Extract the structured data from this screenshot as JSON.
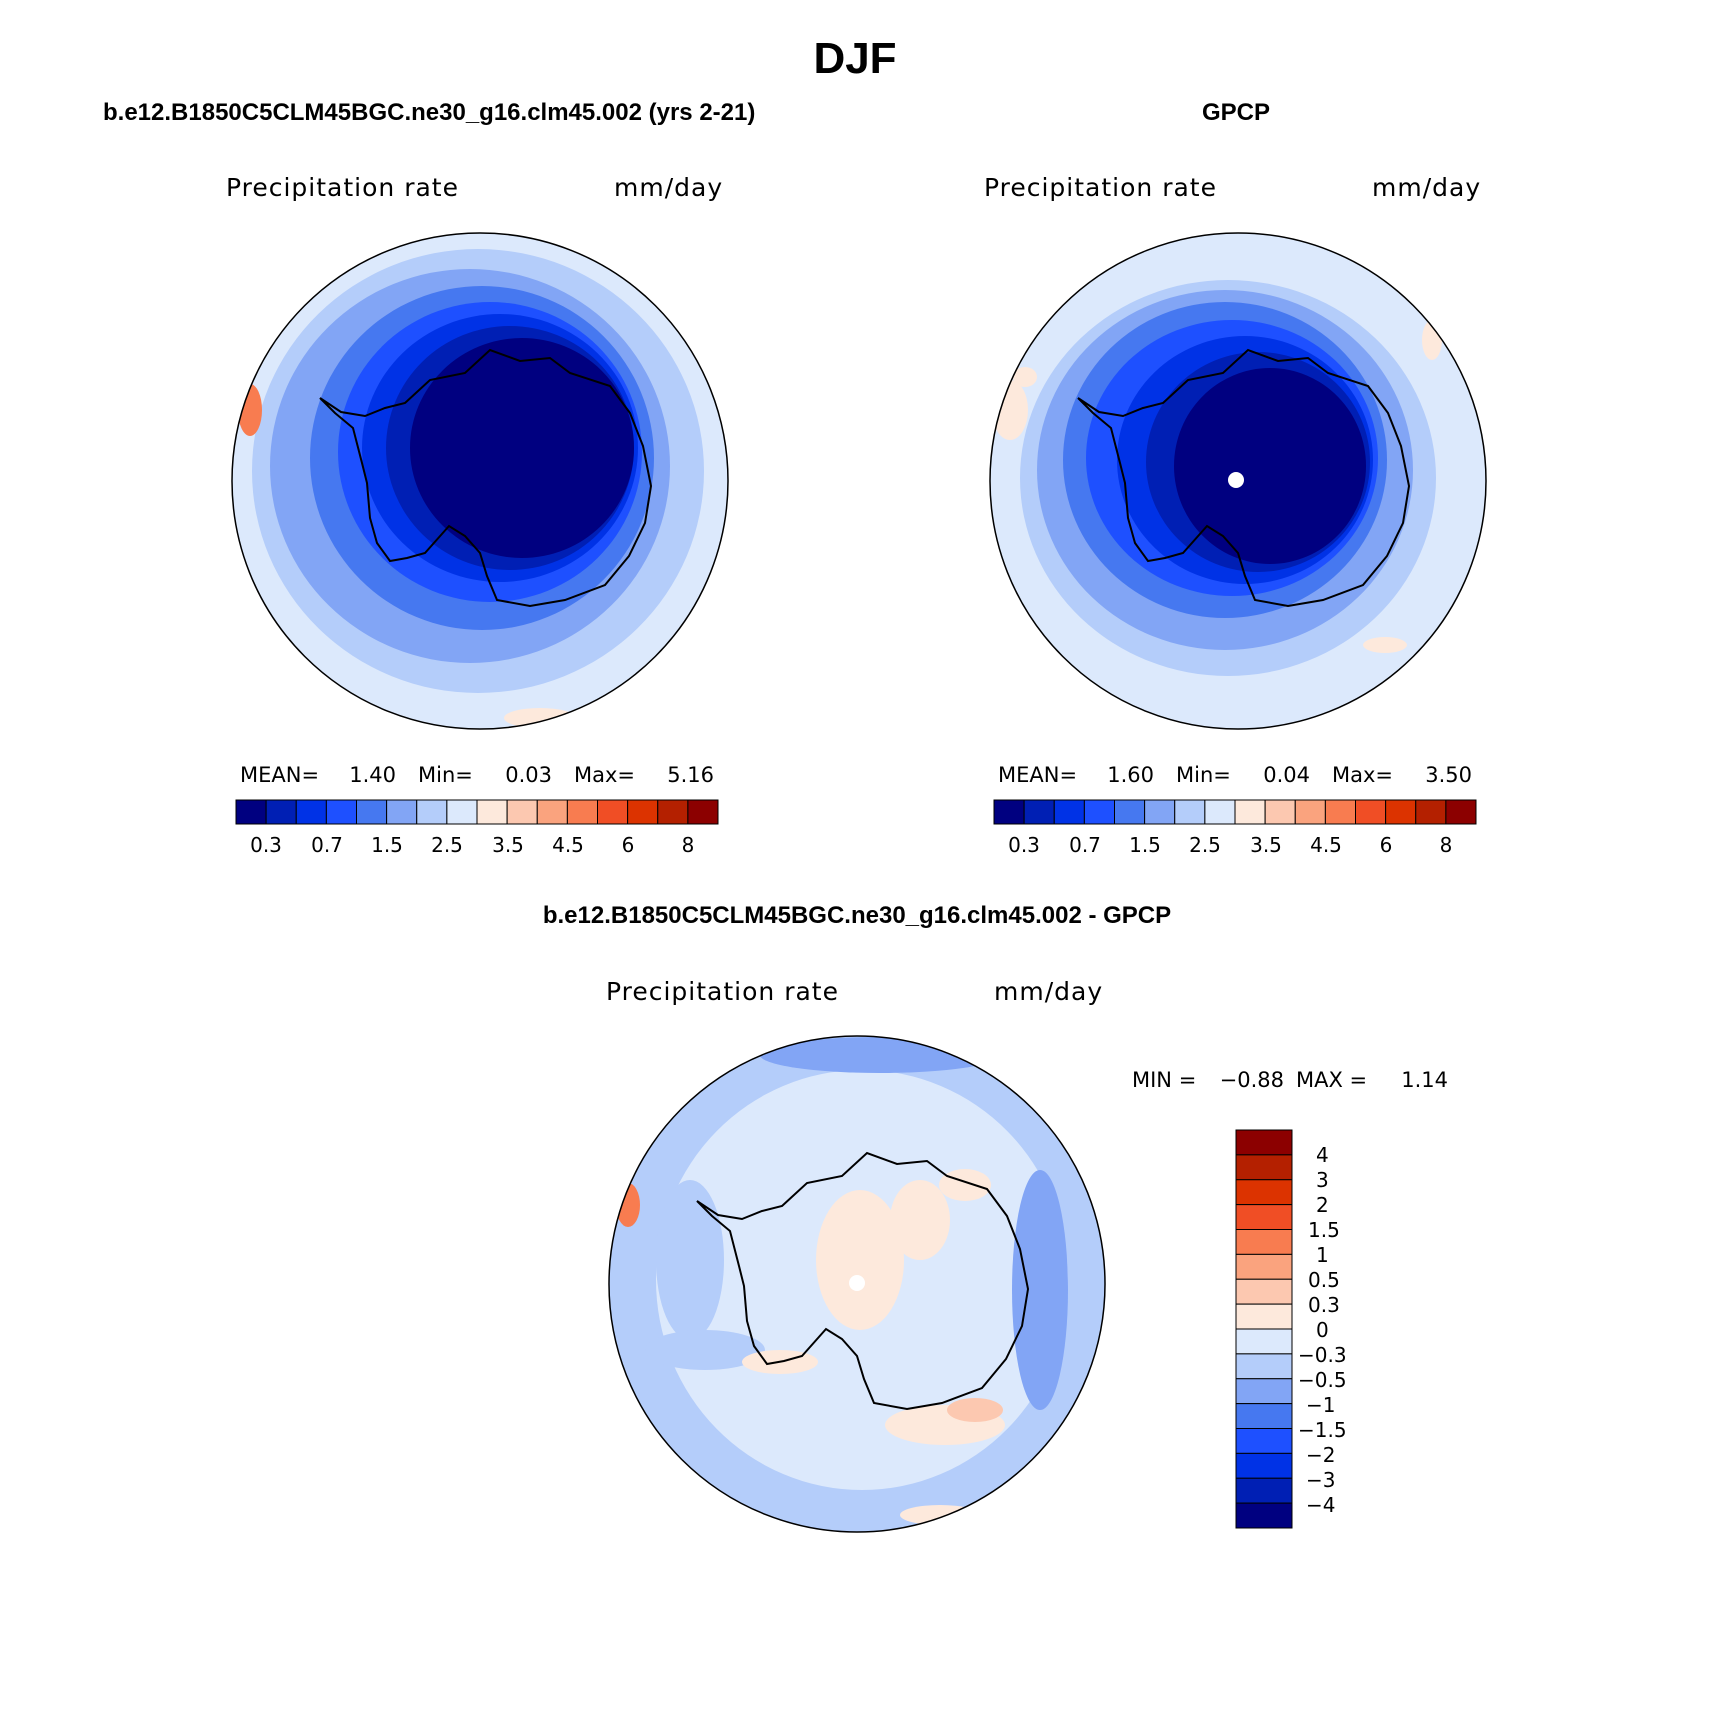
{
  "page": {
    "title": "DJF"
  },
  "panels": [
    {
      "title": "b.e12.B1850C5CLM45BGC.ne30_g16.clm45.002 (yrs 2-21)",
      "variable": "Precipitation rate",
      "units": "mm/day",
      "stats": {
        "mean_label": "MEAN=",
        "mean": "1.40",
        "min_label": "Min=",
        "min": "0.03",
        "max_label": "Max=",
        "max": "5.16"
      },
      "pole_marker": false
    },
    {
      "title": "GPCP",
      "variable": "Precipitation rate",
      "units": "mm/day",
      "stats": {
        "mean_label": "MEAN=",
        "mean": "1.60",
        "min_label": "Min=",
        "min": "0.04",
        "max_label": "Max=",
        "max": "3.50"
      },
      "pole_marker": true
    }
  ],
  "diff_panel": {
    "title": "b.e12.B1850C5CLM45BGC.ne30_g16.clm45.002 - GPCP",
    "variable": "Precipitation rate",
    "units": "mm/day",
    "stats": {
      "min_label": "MIN =",
      "min": "−0.88",
      "max_label": "MAX =",
      "max": "1.14"
    },
    "pole_marker": true
  },
  "colorbar_levels": [
    "0.3",
    "0.7",
    "1.5",
    "2.5",
    "3.5",
    "4.5",
    "6",
    "8"
  ],
  "diff_levels": [
    "4",
    "3",
    "2",
    "1.5",
    "1",
    "0.5",
    "0.3",
    "0",
    "−0.3",
    "−0.5",
    "−1",
    "−1.5",
    "−2",
    "−3",
    "−4"
  ],
  "colors": {
    "abs_scale": [
      "#000080",
      "#001fb4",
      "#0032e6",
      "#1e50ff",
      "#4678f0",
      "#82a5f5",
      "#b4cdfa",
      "#dce9fc",
      "#fde9dc",
      "#fcc8b0",
      "#faa37e",
      "#f87c50",
      "#f04e25",
      "#dc3300",
      "#b42000",
      "#8c0000"
    ],
    "diff_scale": [
      "#8c0000",
      "#b42000",
      "#dc3300",
      "#f04e25",
      "#f87c50",
      "#faa37e",
      "#fcc8b0",
      "#fde9dc",
      "#dce9fc",
      "#b4cdfa",
      "#82a5f5",
      "#4678f0",
      "#1e50ff",
      "#0032e6",
      "#001fb4",
      "#000080"
    ]
  }
}
